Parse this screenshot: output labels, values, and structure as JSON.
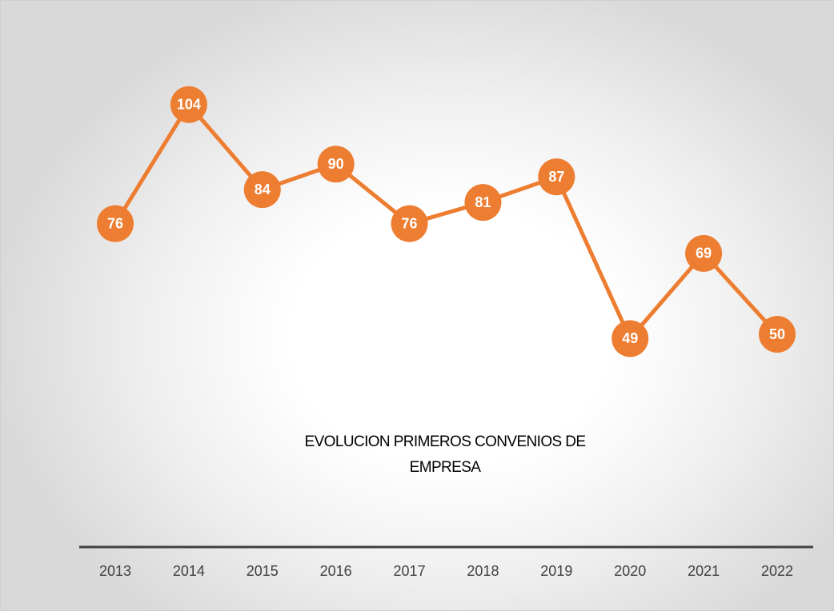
{
  "chart_data": {
    "type": "line",
    "title": "EVOLUCION PRIMEROS CONVENIOS DE EMPRESA",
    "categories": [
      "2013",
      "2014",
      "2015",
      "2016",
      "2017",
      "2018",
      "2019",
      "2020",
      "2021",
      "2022"
    ],
    "values": [
      76,
      104,
      84,
      90,
      76,
      81,
      87,
      49,
      69,
      50
    ],
    "color": "#ed7d31",
    "ylim": [
      0,
      120
    ]
  }
}
